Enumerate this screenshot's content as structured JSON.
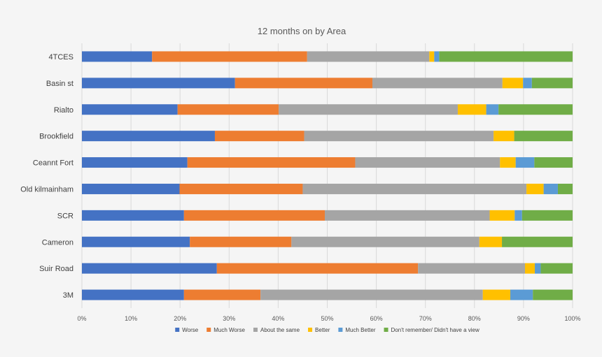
{
  "chart_data": {
    "type": "bar",
    "orientation": "horizontal",
    "stacked": true,
    "normalized": true,
    "title": "12 months on by Area",
    "xlabel": "",
    "ylabel": "",
    "xlim": [
      0,
      100
    ],
    "x_ticks": [
      "0%",
      "10%",
      "20%",
      "30%",
      "40%",
      "50%",
      "60%",
      "70%",
      "80%",
      "90%",
      "100%"
    ],
    "grid": true,
    "legend_position": "bottom",
    "categories": [
      "4TCES",
      "Basin st",
      "Rialto",
      "Brookfield",
      "Ceannt Fort",
      "Old kilmainham",
      "SCR",
      "Cameron",
      "Suir Road",
      "3M"
    ],
    "series": [
      {
        "name": "Worse",
        "color": "#4472c4",
        "values": [
          14.3,
          31.2,
          19.5,
          27.1,
          21.5,
          19.9,
          20.8,
          22.0,
          27.5,
          20.8
        ]
      },
      {
        "name": "Much Worse",
        "color": "#ed7d31",
        "values": [
          31.6,
          28.0,
          20.6,
          18.2,
          34.2,
          25.1,
          28.7,
          20.7,
          41.0,
          15.6
        ]
      },
      {
        "name": "About the same",
        "color": "#a5a5a5",
        "values": [
          24.9,
          26.5,
          36.5,
          38.6,
          29.5,
          45.6,
          33.6,
          38.3,
          21.8,
          45.3
        ]
      },
      {
        "name": "Better",
        "color": "#ffc000",
        "values": [
          1.0,
          4.2,
          5.8,
          4.2,
          3.2,
          3.5,
          5.1,
          4.6,
          2.0,
          5.6
        ]
      },
      {
        "name": "Much Better",
        "color": "#5b9bd5",
        "values": [
          1.0,
          1.8,
          2.5,
          0.0,
          3.8,
          2.9,
          1.5,
          0.0,
          1.2,
          4.6
        ]
      },
      {
        "name": "Don't remember/ Didn't have a view",
        "color": "#70ad47",
        "values": [
          27.2,
          8.3,
          15.1,
          11.9,
          7.8,
          3.0,
          10.3,
          14.4,
          6.5,
          8.1
        ]
      }
    ]
  }
}
